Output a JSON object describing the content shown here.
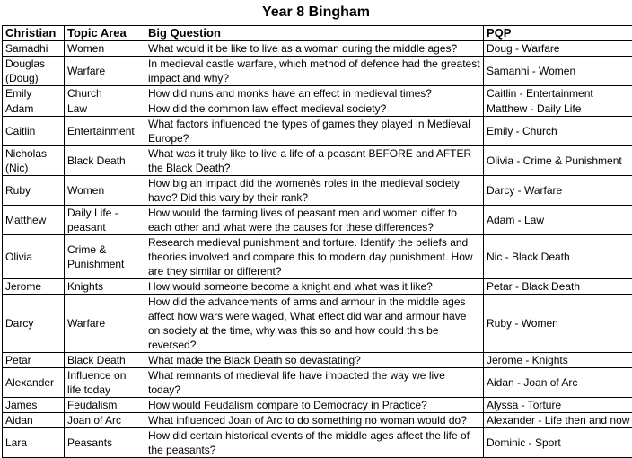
{
  "title": "Year 8 Bingham",
  "headers": {
    "christian": "Christian",
    "topic": "Topic Area",
    "question": "Big Question",
    "pqp": "PQP"
  },
  "rows": [
    {
      "christian": "Samadhi",
      "topic": "Women",
      "question": "What would it be like to live as a woman during the middle ages?",
      "pqp": "Doug - Warfare"
    },
    {
      "christian": "Douglas (Doug)",
      "topic": "Warfare",
      "question": "In medieval castle warfare, which method of defence had the greatest impact and why?",
      "pqp": "Samanhi - Women"
    },
    {
      "christian": "Emily",
      "topic": "Church",
      "question": "How did nuns and monks have an effect in medieval times?",
      "pqp": "Caitlin - Entertainment"
    },
    {
      "christian": "Adam",
      "topic": "Law",
      "question": "How did the common law effect medieval society?",
      "pqp": "Matthew - Daily Life"
    },
    {
      "christian": "Caitlin",
      "topic": "Entertainment",
      "question": "What factors influenced the types of games they played in Medieval Europe?",
      "pqp": "Emily - Church"
    },
    {
      "christian": "Nicholas (Nic)",
      "topic": "Black Death",
      "question": "What was it truly like to live a life of a peasant BEFORE and AFTER the Black Death?",
      "pqp": "Olivia - Crime & Punishment"
    },
    {
      "christian": "Ruby",
      "topic": "Women",
      "question": "How big an impact did the womenês roles in the medieval society have? Did this vary by their rank?",
      "pqp": "Darcy - Warfare"
    },
    {
      "christian": "Matthew",
      "topic": "Daily Life - peasant",
      "question": "How would the farming lives of peasant men and women differ to each other and what were the causes for these differences?",
      "pqp": "Adam - Law"
    },
    {
      "christian": "Olivia",
      "topic": "Crime & Punishment",
      "question": "Research medieval punishment and torture. Identify the beliefs and theories involved and compare this to modern day punishment. How are they similar or different?",
      "pqp": "Nic - Black Death"
    },
    {
      "christian": "Jerome",
      "topic": "Knights",
      "question": "How would someone become a knight and what was it like?",
      "pqp": "Petar - Black Death"
    },
    {
      "christian": "Darcy",
      "topic": "Warfare",
      "question": "How did the advancements of arms and armour in the middle ages affect how wars were waged, What effect did war and armour have on society at the time, why was this so and how could this be reversed?",
      "pqp": "Ruby - Women"
    },
    {
      "christian": "Petar",
      "topic": "Black Death",
      "question": "What made the Black Death so devastating?",
      "pqp": "Jerome - Knights"
    },
    {
      "christian": "Alexander",
      "topic": "Influence on life today",
      "question": "What remnants of medieval life have impacted the way we live today?",
      "pqp": "Aidan - Joan of Arc"
    },
    {
      "christian": "James",
      "topic": "Feudalism",
      "question": "How would Feudalism compare to Democracy in Practice?",
      "pqp": "Alyssa - Torture"
    },
    {
      "christian": "Aidan",
      "topic": "Joan of Arc",
      "question": "What influenced Joan of Arc to do something no woman would do?",
      "pqp": "Alexander - Life then and now"
    },
    {
      "christian": "Lara",
      "topic": "Peasants",
      "question": "How did certain historical events of the middle ages affect the life of the peasants?",
      "pqp": "Dominic - Sport"
    }
  ]
}
